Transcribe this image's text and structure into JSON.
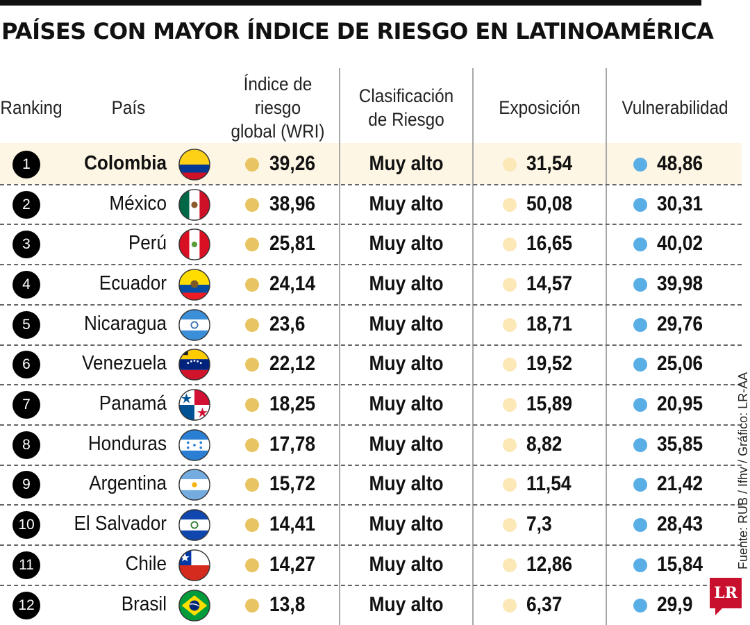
{
  "title": "PAÍSES CON MAYOR ÍNDICE DE RIESGO EN LATINOAMÉRICA",
  "columns": {
    "ranking": "Ranking",
    "pais": "País",
    "wri_1": "Índice de riesgo",
    "wri_2": "global (WRI)",
    "clas_1": "Clasificación",
    "clas_2": "de Riesgo",
    "exposicion": "Exposición",
    "vulnerabilidad": "Vulnerabilidad"
  },
  "colors": {
    "wri": "#e8c462",
    "exposicion": "#fbe8b6",
    "vulnerabilidad": "#5aaee6",
    "highlight": "#fdf6e4"
  },
  "chart_data": {
    "type": "table",
    "title": "PAÍSES CON MAYOR ÍNDICE DE RIESGO EN LATINOAMÉRICA",
    "rows": [
      {
        "rank": "1",
        "country": "Colombia",
        "flag": "colombia-flag-icon",
        "wri": "39,26",
        "clasificacion": "Muy alto",
        "exposicion": "31,54",
        "vulnerabilidad": "48,86"
      },
      {
        "rank": "2",
        "country": "México",
        "flag": "mexico-flag-icon",
        "wri": "38,96",
        "clasificacion": "Muy alto",
        "exposicion": "50,08",
        "vulnerabilidad": "30,31"
      },
      {
        "rank": "3",
        "country": "Perú",
        "flag": "peru-flag-icon",
        "wri": "25,81",
        "clasificacion": "Muy alto",
        "exposicion": "16,65",
        "vulnerabilidad": "40,02"
      },
      {
        "rank": "4",
        "country": "Ecuador",
        "flag": "ecuador-flag-icon",
        "wri": "24,14",
        "clasificacion": "Muy alto",
        "exposicion": "14,57",
        "vulnerabilidad": "39,98"
      },
      {
        "rank": "5",
        "country": "Nicaragua",
        "flag": "nicaragua-flag-icon",
        "wri": "23,6",
        "clasificacion": "Muy alto",
        "exposicion": "18,71",
        "vulnerabilidad": "29,76"
      },
      {
        "rank": "6",
        "country": "Venezuela",
        "flag": "venezuela-flag-icon",
        "wri": "22,12",
        "clasificacion": "Muy alto",
        "exposicion": "19,52",
        "vulnerabilidad": "25,06"
      },
      {
        "rank": "7",
        "country": "Panamá",
        "flag": "panama-flag-icon",
        "wri": "18,25",
        "clasificacion": "Muy alto",
        "exposicion": "15,89",
        "vulnerabilidad": "20,95"
      },
      {
        "rank": "8",
        "country": "Honduras",
        "flag": "honduras-flag-icon",
        "wri": "17,78",
        "clasificacion": "Muy alto",
        "exposicion": "8,82",
        "vulnerabilidad": "35,85"
      },
      {
        "rank": "9",
        "country": "Argentina",
        "flag": "argentina-flag-icon",
        "wri": "15,72",
        "clasificacion": "Muy alto",
        "exposicion": "11,54",
        "vulnerabilidad": "21,42"
      },
      {
        "rank": "10",
        "country": "El Salvador",
        "flag": "el-salvador-flag-icon",
        "wri": "14,41",
        "clasificacion": "Muy alto",
        "exposicion": "7,3",
        "vulnerabilidad": "28,43"
      },
      {
        "rank": "11",
        "country": "Chile",
        "flag": "chile-flag-icon",
        "wri": "14,27",
        "clasificacion": "Muy alto",
        "exposicion": "12,86",
        "vulnerabilidad": "15,84"
      },
      {
        "rank": "12",
        "country": "Brasil",
        "flag": "brasil-flag-icon",
        "wri": "13,8",
        "clasificacion": "Muy alto",
        "exposicion": "6,37",
        "vulnerabilidad": "29,9"
      }
    ]
  },
  "source": "Fuente: RUB / Ifhv / Gráfico: LR-AA",
  "logo": "LR"
}
